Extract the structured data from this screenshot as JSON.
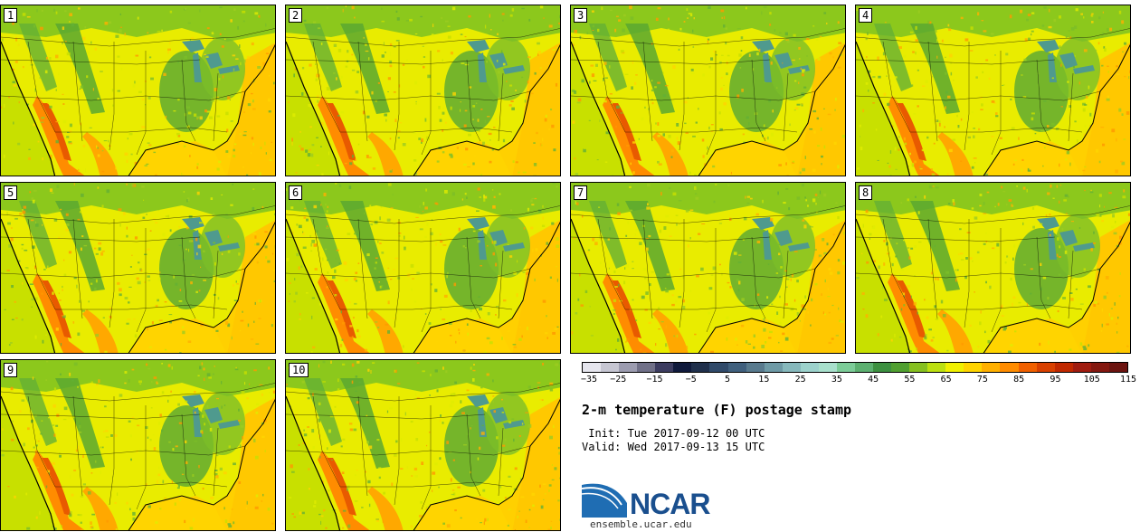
{
  "panels": [
    {
      "label": "1"
    },
    {
      "label": "2"
    },
    {
      "label": "3"
    },
    {
      "label": "4"
    },
    {
      "label": "5"
    },
    {
      "label": "6"
    },
    {
      "label": "7"
    },
    {
      "label": "8"
    },
    {
      "label": "9"
    },
    {
      "label": "10"
    }
  ],
  "colorbar": {
    "colors": [
      "#e6e6ee",
      "#c6c6d2",
      "#9c9cb0",
      "#707088",
      "#3c3c60",
      "#101a3c",
      "#20304c",
      "#304a6a",
      "#40607e",
      "#587a8e",
      "#6e9aa6",
      "#86b8bc",
      "#9cd2cc",
      "#a8e0cc",
      "#7ccc98",
      "#5cb070",
      "#3c9040",
      "#50a030",
      "#86c020",
      "#bce010",
      "#f0f000",
      "#ffd400",
      "#ffb000",
      "#ff8c00",
      "#f06000",
      "#d84000",
      "#c02800",
      "#a01c10",
      "#841810",
      "#6c1410"
    ],
    "tick_labels": [
      "−35",
      "−25",
      "−15",
      "−5",
      "5",
      "15",
      "25",
      "35",
      "45",
      "55",
      "65",
      "75",
      "85",
      "95",
      "105",
      "115"
    ]
  },
  "title": "2-m temperature (F) postage stamp",
  "init": " Init: Tue 2017-09-12 00 UTC",
  "valid": "Valid: Wed 2017-09-13 15 UTC",
  "logo": {
    "name": "NCAR",
    "url": "ensemble.ucar.edu"
  }
}
